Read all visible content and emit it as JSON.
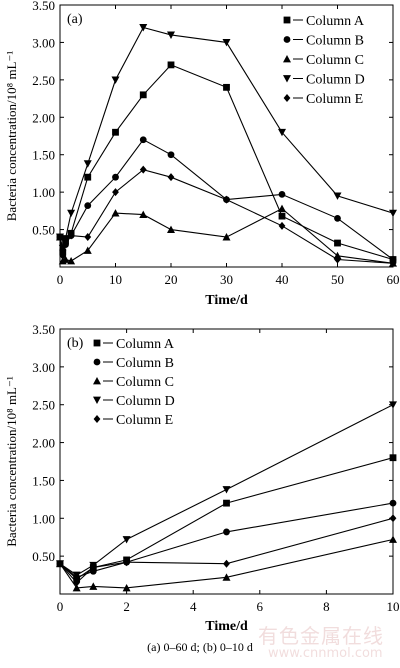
{
  "caption": "(a) 0–60 d; (b) 0–10 d",
  "watermark": {
    "text": "有色金属在线",
    "url": "www.cnnmol.com"
  },
  "colors": {
    "axis": "#000000",
    "series": "#000000"
  },
  "chart_data": [
    {
      "type": "line",
      "panel_label": "(a)",
      "xlabel": "Time/d",
      "ylabel": "Bacteria concentration/10⁸ mL⁻¹",
      "xlim": [
        0,
        60
      ],
      "ylim": [
        0,
        3.5
      ],
      "xticks": [
        0,
        10,
        20,
        30,
        40,
        50,
        60
      ],
      "yticks": [
        0.5,
        1.0,
        1.5,
        2.0,
        2.5,
        3.0,
        3.5
      ],
      "ytick_labels": [
        "0.50",
        "1.00",
        "1.50",
        "2.00",
        "2.50",
        "3.00",
        "3.50"
      ],
      "legend_position": "top-right",
      "series": [
        {
          "name": "Column A",
          "marker": "square",
          "x": [
            0,
            0.5,
            1,
            2,
            5,
            10,
            15,
            20,
            30,
            40,
            50,
            60
          ],
          "y": [
            0.4,
            0.2,
            0.35,
            0.45,
            1.2,
            1.8,
            2.3,
            2.7,
            2.4,
            0.68,
            0.32,
            0.1
          ]
        },
        {
          "name": "Column B",
          "marker": "circle",
          "x": [
            0,
            0.5,
            1,
            2,
            5,
            10,
            15,
            20,
            30,
            40,
            50,
            60
          ],
          "y": [
            0.4,
            0.22,
            0.3,
            0.42,
            0.82,
            1.2,
            1.7,
            1.5,
            0.9,
            0.97,
            0.65,
            0.1
          ]
        },
        {
          "name": "Column C",
          "marker": "triangle-up",
          "x": [
            0,
            0.5,
            1,
            2,
            5,
            10,
            15,
            20,
            30,
            40,
            50,
            60
          ],
          "y": [
            0.4,
            0.08,
            0.1,
            0.08,
            0.22,
            0.72,
            0.7,
            0.5,
            0.4,
            0.78,
            0.15,
            0.05
          ]
        },
        {
          "name": "Column D",
          "marker": "triangle-down",
          "x": [
            0,
            0.5,
            1,
            2,
            5,
            10,
            15,
            20,
            30,
            40,
            50,
            60
          ],
          "y": [
            0.4,
            0.25,
            0.38,
            0.72,
            1.38,
            2.5,
            3.2,
            3.1,
            3.0,
            1.8,
            0.95,
            0.72
          ]
        },
        {
          "name": "Column E",
          "marker": "diamond",
          "x": [
            0,
            0.5,
            1,
            2,
            5,
            10,
            15,
            20,
            30,
            40,
            50,
            60
          ],
          "y": [
            0.4,
            0.15,
            0.35,
            0.42,
            0.4,
            1.0,
            1.3,
            1.2,
            0.9,
            0.55,
            0.1,
            0.05
          ]
        }
      ]
    },
    {
      "type": "line",
      "panel_label": "(b)",
      "xlabel": "Time/d",
      "ylabel": "Bacteria concentration/10⁸ mL⁻¹",
      "xlim": [
        0,
        10
      ],
      "ylim": [
        0,
        3.5
      ],
      "xticks": [
        0,
        2,
        4,
        6,
        8,
        10
      ],
      "yticks": [
        0.5,
        1.0,
        1.5,
        2.0,
        2.5,
        3.0,
        3.5
      ],
      "ytick_labels": [
        "0.50",
        "1.00",
        "1.50",
        "2.00",
        "2.50",
        "3.00",
        "3.50"
      ],
      "legend_position": "top-left",
      "series": [
        {
          "name": "Column A",
          "marker": "square",
          "x": [
            0,
            0.5,
            1,
            2,
            5,
            10
          ],
          "y": [
            0.4,
            0.2,
            0.35,
            0.45,
            1.2,
            1.8
          ]
        },
        {
          "name": "Column B",
          "marker": "circle",
          "x": [
            0,
            0.5,
            1,
            2,
            5,
            10
          ],
          "y": [
            0.4,
            0.22,
            0.3,
            0.42,
            0.82,
            1.2
          ]
        },
        {
          "name": "Column C",
          "marker": "triangle-up",
          "x": [
            0,
            0.5,
            1,
            2,
            5,
            10
          ],
          "y": [
            0.4,
            0.08,
            0.1,
            0.08,
            0.22,
            0.72
          ]
        },
        {
          "name": "Column D",
          "marker": "triangle-down",
          "x": [
            0,
            0.5,
            1,
            2,
            5,
            10
          ],
          "y": [
            0.4,
            0.25,
            0.38,
            0.72,
            1.38,
            2.5
          ]
        },
        {
          "name": "Column E",
          "marker": "diamond",
          "x": [
            0,
            0.5,
            1,
            2,
            5,
            10
          ],
          "y": [
            0.4,
            0.15,
            0.35,
            0.42,
            0.4,
            1.0
          ]
        }
      ]
    }
  ]
}
